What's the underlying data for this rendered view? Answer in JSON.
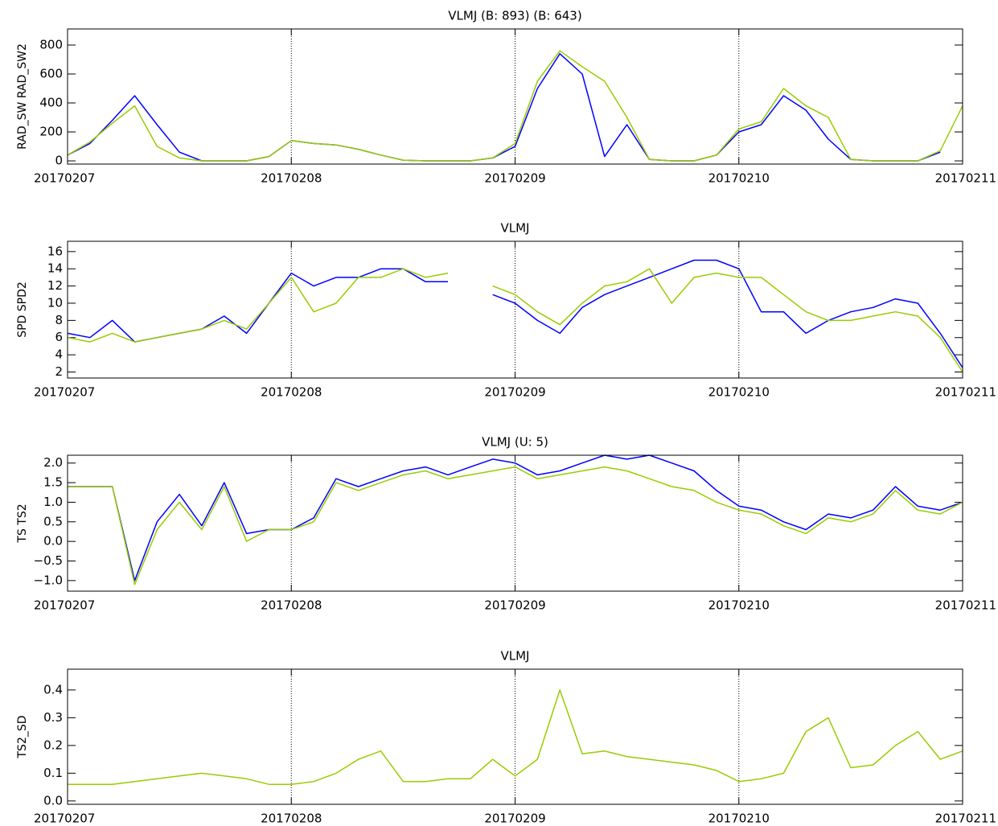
{
  "chart_data": [
    {
      "type": "line",
      "title": "VLMJ (B: 893) (B: 643)",
      "ylabel": "RAD_SW RAD_SW2",
      "x": [
        0,
        0.1,
        0.2,
        0.3,
        0.4,
        0.5,
        0.6,
        0.7,
        0.8,
        0.9,
        1,
        1.1,
        1.2,
        1.3,
        1.4,
        1.5,
        1.6,
        1.7,
        1.8,
        1.9,
        2,
        2.1,
        2.2,
        2.3,
        2.4,
        2.5,
        2.6,
        2.7,
        2.8,
        2.9,
        3,
        3.1,
        3.2,
        3.3,
        3.4,
        3.5,
        3.6,
        3.7,
        3.8,
        3.9,
        4
      ],
      "xlim": [
        0,
        4
      ],
      "xticks": [
        {
          "value": 0,
          "label": "20170207"
        },
        {
          "value": 1,
          "label": "20170208"
        },
        {
          "value": 2,
          "label": "20170209"
        },
        {
          "value": 3,
          "label": "20170210"
        },
        {
          "value": 4,
          "label": "20170211"
        }
      ],
      "ylim": [
        -22,
        911
      ],
      "yticks": [
        0,
        200,
        400,
        600,
        800
      ],
      "grid": "dotted",
      "series": [
        {
          "color": "#0000ff",
          "values": [
            40,
            120,
            280,
            450,
            250,
            60,
            0,
            0,
            0,
            30,
            140,
            120,
            110,
            80,
            40,
            5,
            0,
            0,
            0,
            20,
            100,
            500,
            740,
            600,
            30,
            250,
            10,
            0,
            0,
            40,
            200,
            250,
            450,
            350,
            150,
            10,
            0,
            0,
            0,
            60,
            null
          ]
        },
        {
          "color": "#99cc00",
          "values": [
            40,
            130,
            260,
            380,
            100,
            20,
            0,
            0,
            0,
            30,
            140,
            120,
            110,
            80,
            40,
            5,
            0,
            0,
            0,
            20,
            120,
            550,
            760,
            650,
            550,
            300,
            10,
            0,
            0,
            40,
            220,
            270,
            500,
            380,
            300,
            10,
            0,
            0,
            0,
            70,
            380
          ]
        }
      ]
    },
    {
      "type": "line",
      "title": "VLMJ",
      "ylabel": "SPD SPD2",
      "x": [
        0,
        0.1,
        0.2,
        0.3,
        0.4,
        0.5,
        0.6,
        0.7,
        0.8,
        0.9,
        1,
        1.1,
        1.2,
        1.3,
        1.4,
        1.5,
        1.6,
        1.7,
        1.8,
        1.9,
        2,
        2.1,
        2.2,
        2.3,
        2.4,
        2.5,
        2.6,
        2.7,
        2.8,
        2.9,
        3,
        3.1,
        3.2,
        3.3,
        3.4,
        3.5,
        3.6,
        3.7,
        3.8,
        3.9,
        4
      ],
      "xlim": [
        0,
        4
      ],
      "xticks": [
        {
          "value": 0,
          "label": "20170207"
        },
        {
          "value": 1,
          "label": "20170208"
        },
        {
          "value": 2,
          "label": "20170209"
        },
        {
          "value": 3,
          "label": "20170210"
        },
        {
          "value": 4,
          "label": "20170211"
        }
      ],
      "ylim": [
        1.3,
        17.2
      ],
      "yticks": [
        2,
        4,
        6,
        8,
        10,
        12,
        14,
        16
      ],
      "grid": "dotted",
      "series": [
        {
          "color": "#0000ff",
          "values": [
            6.5,
            6,
            8,
            5.5,
            6,
            6.5,
            7,
            8.5,
            6.5,
            10,
            13.5,
            12,
            13,
            13,
            14,
            14,
            12.5,
            12.5,
            null,
            11,
            10,
            8,
            6.5,
            9.5,
            11,
            12,
            13,
            14,
            15,
            15,
            14,
            9,
            9,
            6.5,
            8,
            9,
            9.5,
            10.5,
            10,
            6.5,
            2.5
          ]
        },
        {
          "color": "#99cc00",
          "values": [
            6,
            5.5,
            6.5,
            5.5,
            6,
            6.5,
            7,
            8,
            7,
            10,
            13,
            9,
            10,
            13,
            13,
            14,
            13,
            13.5,
            null,
            12,
            11,
            9,
            7.5,
            10,
            12,
            12.5,
            14,
            10,
            13,
            13.5,
            13,
            13,
            11,
            9,
            8,
            8,
            8.5,
            9,
            8.5,
            6,
            2
          ]
        }
      ]
    },
    {
      "type": "line",
      "title": "VLMJ (U: 5)",
      "ylabel": "TS TS2",
      "x": [
        0,
        0.1,
        0.2,
        0.3,
        0.4,
        0.5,
        0.6,
        0.7,
        0.8,
        0.9,
        1,
        1.1,
        1.2,
        1.3,
        1.4,
        1.5,
        1.6,
        1.7,
        1.8,
        1.9,
        2,
        2.1,
        2.2,
        2.3,
        2.4,
        2.5,
        2.6,
        2.7,
        2.8,
        2.9,
        3,
        3.1,
        3.2,
        3.3,
        3.4,
        3.5,
        3.6,
        3.7,
        3.8,
        3.9,
        4
      ],
      "xlim": [
        0,
        4
      ],
      "xticks": [
        {
          "value": 0,
          "label": "20170207"
        },
        {
          "value": 1,
          "label": "20170208"
        },
        {
          "value": 2,
          "label": "20170209"
        },
        {
          "value": 3,
          "label": "20170210"
        },
        {
          "value": 4,
          "label": "20170211"
        }
      ],
      "ylim": [
        -1.27,
        2.2
      ],
      "yticks": [
        {
          "value": -1,
          "label": "−1.0"
        },
        {
          "value": -0.5,
          "label": "−0.5"
        },
        {
          "value": 0,
          "label": "0.0"
        },
        {
          "value": 0.5,
          "label": "0.5"
        },
        {
          "value": 1,
          "label": "1.0"
        },
        {
          "value": 1.5,
          "label": "1.5"
        },
        {
          "value": 2,
          "label": "2.0"
        }
      ],
      "grid": "dotted",
      "series": [
        {
          "color": "#0000ff",
          "values": [
            1.4,
            1.4,
            1.4,
            -1.0,
            0.5,
            1.2,
            0.4,
            1.5,
            0.2,
            0.3,
            0.3,
            0.6,
            1.6,
            1.4,
            1.6,
            1.8,
            1.9,
            1.7,
            1.9,
            2.1,
            2.0,
            1.7,
            1.8,
            2.0,
            2.2,
            2.1,
            2.2,
            2.0,
            1.8,
            1.3,
            0.9,
            0.8,
            0.5,
            0.3,
            0.7,
            0.6,
            0.8,
            1.4,
            0.9,
            0.8,
            1.0
          ]
        },
        {
          "color": "#99cc00",
          "values": [
            1.4,
            1.4,
            1.4,
            -1.1,
            0.3,
            1.0,
            0.3,
            1.4,
            0.0,
            0.3,
            0.3,
            0.5,
            1.5,
            1.3,
            1.5,
            1.7,
            1.8,
            1.6,
            1.7,
            1.8,
            1.9,
            1.6,
            1.7,
            1.8,
            1.9,
            1.8,
            1.6,
            1.4,
            1.3,
            1.0,
            0.8,
            0.7,
            0.4,
            0.2,
            0.6,
            0.5,
            0.7,
            1.3,
            0.8,
            0.7,
            1.0
          ]
        }
      ]
    },
    {
      "type": "line",
      "title": "VLMJ",
      "ylabel": "TS2_SD",
      "x": [
        0,
        0.1,
        0.2,
        0.3,
        0.4,
        0.5,
        0.6,
        0.7,
        0.8,
        0.9,
        1,
        1.1,
        1.2,
        1.3,
        1.4,
        1.5,
        1.6,
        1.7,
        1.8,
        1.9,
        2,
        2.1,
        2.2,
        2.3,
        2.4,
        2.5,
        2.6,
        2.7,
        2.8,
        2.9,
        3,
        3.1,
        3.2,
        3.3,
        3.4,
        3.5,
        3.6,
        3.7,
        3.8,
        3.9,
        4
      ],
      "xlim": [
        0,
        4
      ],
      "xticks": [
        {
          "value": 0,
          "label": "20170207"
        },
        {
          "value": 1,
          "label": "20170208"
        },
        {
          "value": 2,
          "label": "20170209"
        },
        {
          "value": 3,
          "label": "20170210"
        },
        {
          "value": 4,
          "label": "20170211"
        }
      ],
      "ylim": [
        -0.012,
        0.475
      ],
      "yticks": [
        {
          "value": 0,
          "label": "0.0"
        },
        {
          "value": 0.1,
          "label": "0.1"
        },
        {
          "value": 0.2,
          "label": "0.2"
        },
        {
          "value": 0.3,
          "label": "0.3"
        },
        {
          "value": 0.4,
          "label": "0.4"
        }
      ],
      "grid": "dotted",
      "series": [
        {
          "color": "#99cc00",
          "values": [
            0.06,
            0.06,
            0.06,
            0.07,
            0.08,
            0.09,
            0.1,
            0.09,
            0.08,
            0.06,
            0.06,
            0.07,
            0.1,
            0.15,
            0.18,
            0.07,
            0.07,
            0.08,
            0.08,
            0.15,
            0.09,
            0.15,
            0.4,
            0.17,
            0.18,
            0.16,
            0.15,
            0.14,
            0.13,
            0.11,
            0.07,
            0.08,
            0.1,
            0.25,
            0.3,
            0.12,
            0.13,
            0.2,
            0.25,
            0.15,
            0.18
          ]
        }
      ]
    }
  ]
}
